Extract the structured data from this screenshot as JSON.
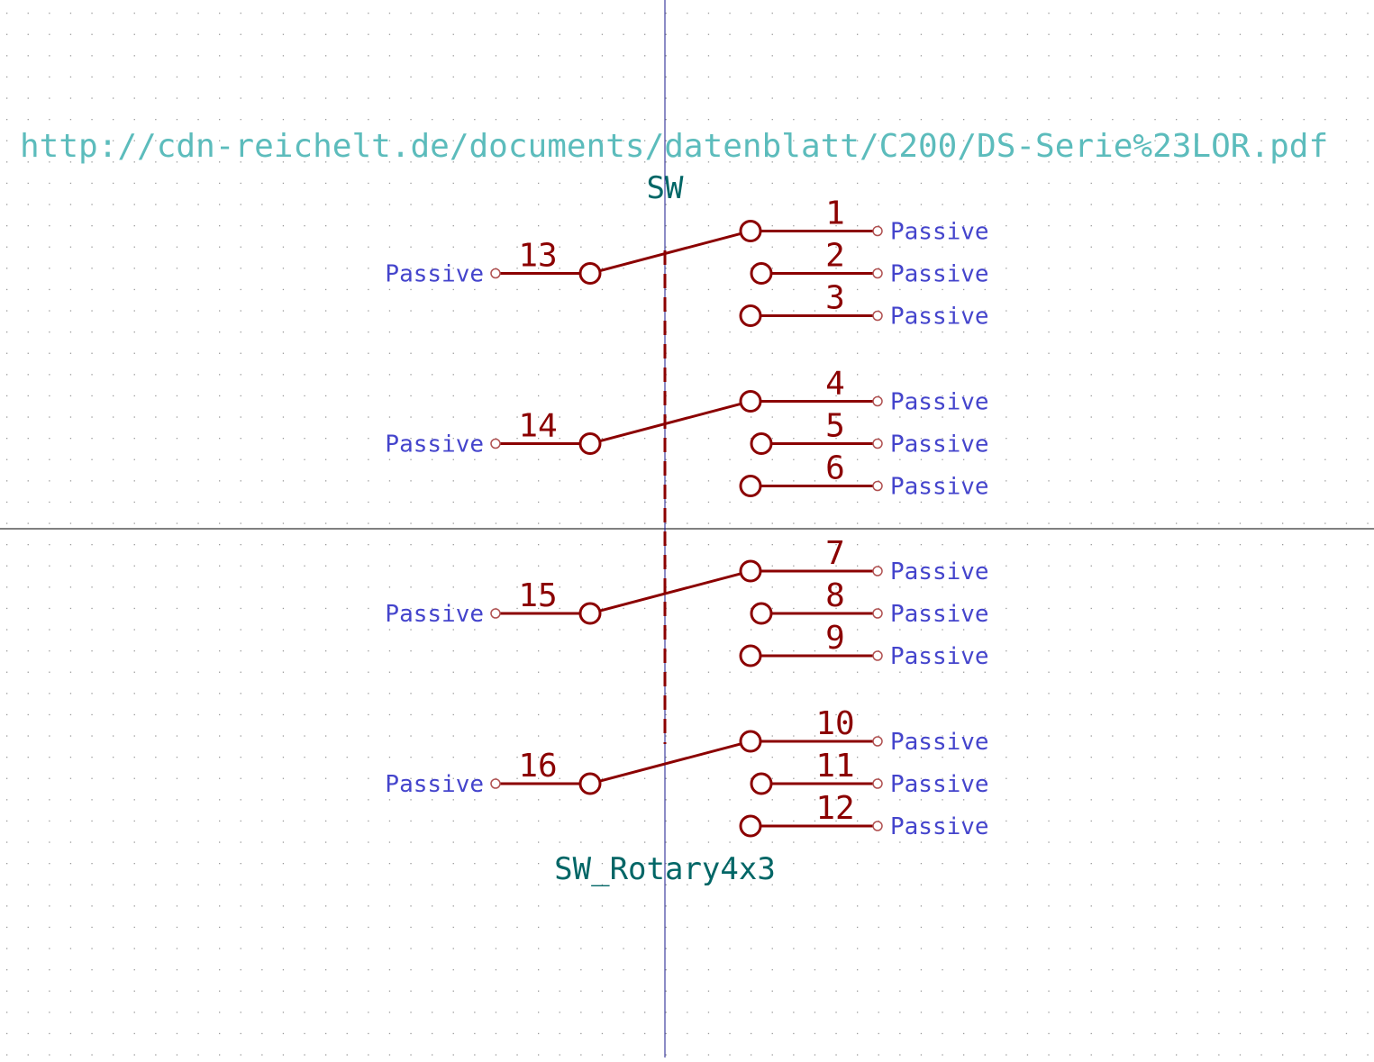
{
  "symbol": {
    "reference": "SW",
    "value": "SW_Rotary4x3",
    "datasheet": "http://cdn-reichelt.de/documents/datenblatt/C200/DS-Serie%23LOR.pdf"
  },
  "colors": {
    "background": "#ffffff",
    "grid_dot": "#9a9a9a",
    "symbol_body": "#8b0000",
    "pin_type": "#4444cc",
    "field": "#006666",
    "datasheet_field": "#5cbcbc",
    "axis_vertical": "#1a1a8c",
    "axis_horizontal": "#000000"
  },
  "pin_electrical_type": "Passive",
  "decks": [
    {
      "common": {
        "number": "13",
        "type": "Passive"
      },
      "positions": [
        {
          "number": "1",
          "type": "Passive",
          "selected": true
        },
        {
          "number": "2",
          "type": "Passive",
          "selected": false
        },
        {
          "number": "3",
          "type": "Passive",
          "selected": false
        }
      ]
    },
    {
      "common": {
        "number": "14",
        "type": "Passive"
      },
      "positions": [
        {
          "number": "4",
          "type": "Passive",
          "selected": true
        },
        {
          "number": "5",
          "type": "Passive",
          "selected": false
        },
        {
          "number": "6",
          "type": "Passive",
          "selected": false
        }
      ]
    },
    {
      "common": {
        "number": "15",
        "type": "Passive"
      },
      "positions": [
        {
          "number": "7",
          "type": "Passive",
          "selected": true
        },
        {
          "number": "8",
          "type": "Passive",
          "selected": false
        },
        {
          "number": "9",
          "type": "Passive",
          "selected": false
        }
      ]
    },
    {
      "common": {
        "number": "16",
        "type": "Passive"
      },
      "positions": [
        {
          "number": "10",
          "type": "Passive",
          "selected": true
        },
        {
          "number": "11",
          "type": "Passive",
          "selected": false
        },
        {
          "number": "12",
          "type": "Passive",
          "selected": false
        }
      ]
    }
  ]
}
